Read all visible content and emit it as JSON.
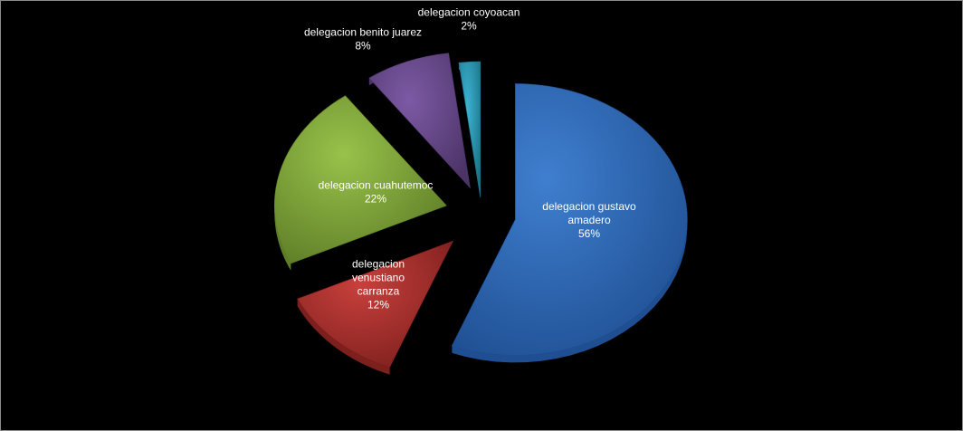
{
  "chart_data": {
    "type": "pie",
    "title": "",
    "slices": [
      {
        "label_lines": [
          "delegacion gustavo",
          "amadero"
        ],
        "percent_label": "56%",
        "value": 56,
        "color": "#3f7fcf",
        "dark": "#1f4f92",
        "label_color": "#ffffff"
      },
      {
        "label_lines": [
          "delegacion",
          "venustiano",
          "carranza"
        ],
        "percent_label": "12%",
        "value": 12,
        "color": "#c8403c",
        "dark": "#7c1f1d",
        "label_color": "#ffffff"
      },
      {
        "label_lines": [
          "delegacion cuahutemoc"
        ],
        "percent_label": "22%",
        "value": 22,
        "color": "#98c24a",
        "dark": "#5e7d27",
        "label_color": "#ffffff"
      },
      {
        "label_lines": [
          "delegacion benito juarez"
        ],
        "percent_label": "8%",
        "value": 8,
        "color": "#7d5aa5",
        "dark": "#4b3366",
        "label_color": "#ffffff"
      },
      {
        "label_lines": [
          "delegacion coyoacan"
        ],
        "percent_label": "2%",
        "value": 2,
        "color": "#3bb4d2",
        "dark": "#1d7087",
        "label_color": "#ffffff"
      }
    ]
  }
}
